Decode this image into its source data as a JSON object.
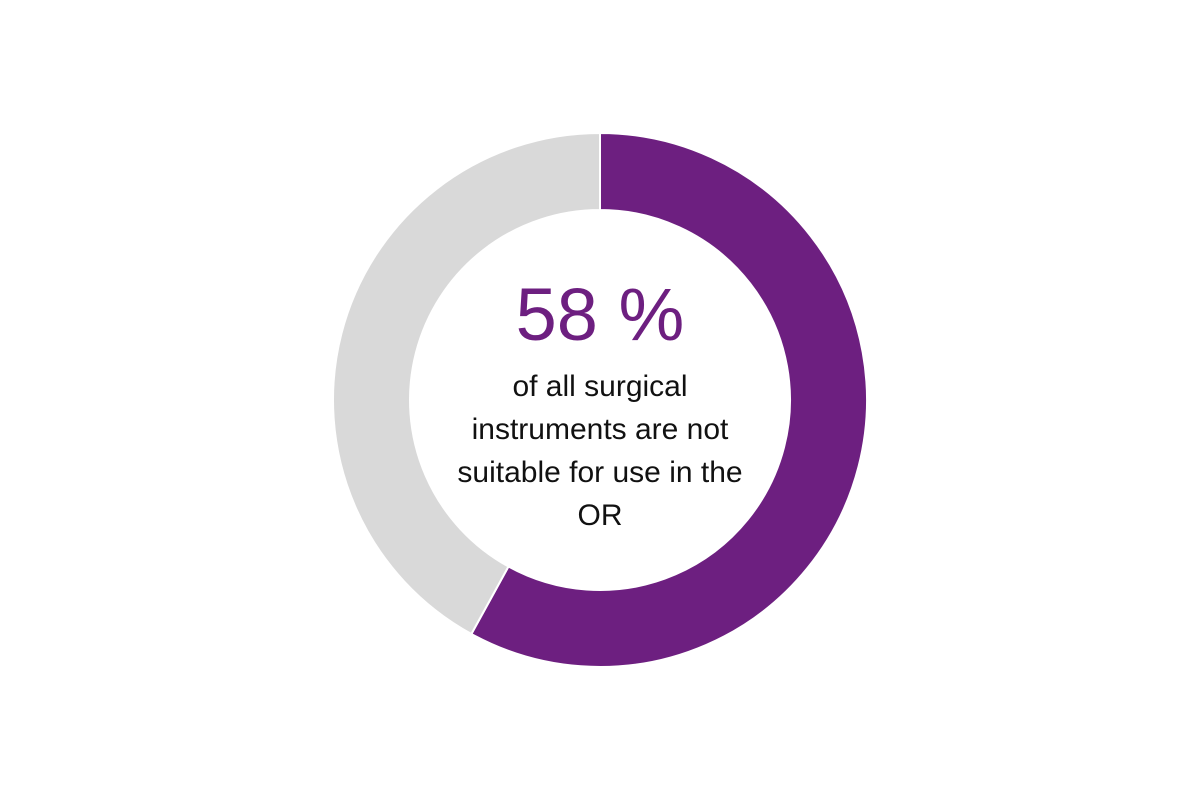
{
  "chart_data": {
    "type": "donut",
    "values": [
      58,
      42
    ],
    "value_labels": [
      "58 %",
      null
    ],
    "colors": [
      "#6d1f80",
      "#d9d9d9"
    ],
    "description": "of all surgical instruments are not suitable for use in the OR"
  }
}
